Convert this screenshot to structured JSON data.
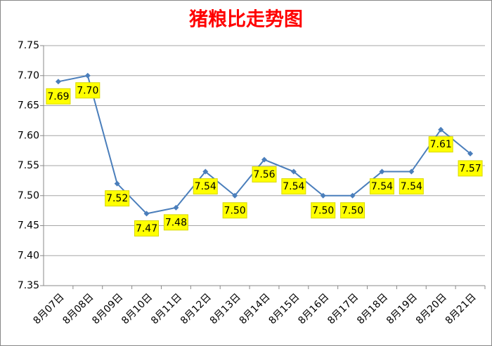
{
  "chart_data": {
    "type": "line",
    "title": "猪粮比走势图",
    "categories": [
      "8月07日",
      "8月08日",
      "8月09日",
      "8月10日",
      "8月11日",
      "8月12日",
      "8月13日",
      "8月14日",
      "8月15日",
      "8月16日",
      "8月17日",
      "8月18日",
      "8月19日",
      "8月20日",
      "8月21日"
    ],
    "values": [
      7.69,
      7.7,
      7.52,
      7.47,
      7.48,
      7.54,
      7.5,
      7.56,
      7.54,
      7.5,
      7.5,
      7.54,
      7.54,
      7.61,
      7.57
    ],
    "value_labels": [
      "7.69",
      "7.70",
      "7.52",
      "7.47",
      "7.48",
      "7.54",
      "7.50",
      "7.56",
      "7.54",
      "7.50",
      "7.50",
      "7.54",
      "7.54",
      "7.61",
      "7.57"
    ],
    "color": "#4a7ebb",
    "ylim": [
      7.35,
      7.75
    ],
    "yticks": [
      7.35,
      {
        "value": 7.4,
        "label": "7.40"
      },
      7.45,
      {
        "value": 7.5,
        "label": "7.50"
      },
      7.55,
      {
        "value": 7.6,
        "label": "7.60"
      },
      7.65,
      {
        "value": 7.7,
        "label": "7.70"
      },
      7.75
    ],
    "grid": true
  }
}
